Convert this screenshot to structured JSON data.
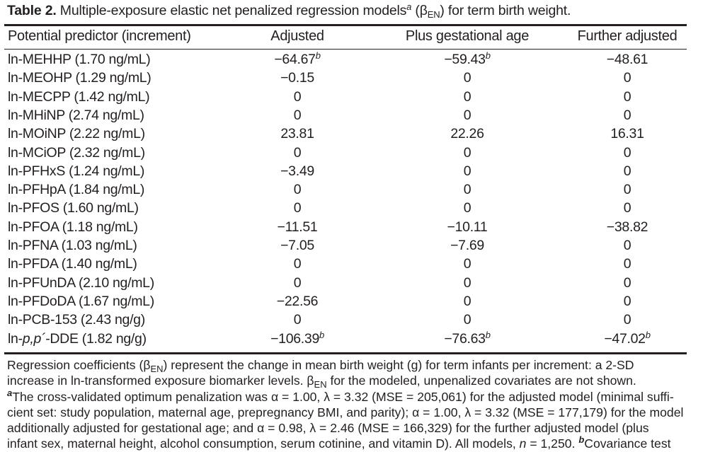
{
  "caption": {
    "label": "Table 2.",
    "text_before": "Multiple-exposure elastic net penalized regression models",
    "mark": "a",
    "text_mid": "(β",
    "sub": "EN",
    "text_after": ") for term birth weight."
  },
  "headers": [
    "Potential predictor (increment)",
    "Adjusted",
    "Plus gestational age",
    "Further adjusted"
  ],
  "rows": [
    {
      "pre": "ln-MEHHP (1.70 ng/mL)",
      "it": "",
      "post": "",
      "v1": "−64.67",
      "s1": "b",
      "v2": "−59.43",
      "s2": "b",
      "v3": "−48.61",
      "s3": ""
    },
    {
      "pre": "ln-MEOHP (1.29 ng/mL)",
      "it": "",
      "post": "",
      "v1": "−0.15",
      "s1": "",
      "v2": "0",
      "s2": "",
      "v3": "0",
      "s3": ""
    },
    {
      "pre": "ln-MECPP (1.42 ng/mL)",
      "it": "",
      "post": "",
      "v1": "0",
      "s1": "",
      "v2": "0",
      "s2": "",
      "v3": "0",
      "s3": ""
    },
    {
      "pre": "ln-MHiNP (2.74 ng/mL)",
      "it": "",
      "post": "",
      "v1": "0",
      "s1": "",
      "v2": "0",
      "s2": "",
      "v3": "0",
      "s3": ""
    },
    {
      "pre": "ln-MOiNP (2.22 ng/mL)",
      "it": "",
      "post": "",
      "v1": "23.81",
      "s1": "",
      "v2": "22.26",
      "s2": "",
      "v3": "16.31",
      "s3": ""
    },
    {
      "pre": "ln-MCiOP (2.32 ng/mL)",
      "it": "",
      "post": "",
      "v1": "0",
      "s1": "",
      "v2": "0",
      "s2": "",
      "v3": "0",
      "s3": ""
    },
    {
      "pre": "ln-PFHxS (1.24 ng/mL)",
      "it": "",
      "post": "",
      "v1": "−3.49",
      "s1": "",
      "v2": "0",
      "s2": "",
      "v3": "0",
      "s3": ""
    },
    {
      "pre": "ln-PFHpA (1.84 ng/mL)",
      "it": "",
      "post": "",
      "v1": "0",
      "s1": "",
      "v2": "0",
      "s2": "",
      "v3": "0",
      "s3": ""
    },
    {
      "pre": "ln-PFOS (1.60 ng/mL)",
      "it": "",
      "post": "",
      "v1": "0",
      "s1": "",
      "v2": "0",
      "s2": "",
      "v3": "0",
      "s3": ""
    },
    {
      "pre": "ln-PFOA (1.18 ng/mL)",
      "it": "",
      "post": "",
      "v1": "−11.51",
      "s1": "",
      "v2": "−10.11",
      "s2": "",
      "v3": "−38.82",
      "s3": ""
    },
    {
      "pre": "ln-PFNA (1.03 ng/mL)",
      "it": "",
      "post": "",
      "v1": "−7.05",
      "s1": "",
      "v2": "−7.69",
      "s2": "",
      "v3": "0",
      "s3": ""
    },
    {
      "pre": "ln-PFDA (1.40 ng/mL)",
      "it": "",
      "post": "",
      "v1": "0",
      "s1": "",
      "v2": "0",
      "s2": "",
      "v3": "0",
      "s3": ""
    },
    {
      "pre": "ln-PFUnDA (2.10 ng/mL)",
      "it": "",
      "post": "",
      "v1": "0",
      "s1": "",
      "v2": "0",
      "s2": "",
      "v3": "0",
      "s3": ""
    },
    {
      "pre": "ln-PFDoDA (1.67 ng/mL)",
      "it": "",
      "post": "",
      "v1": "−22.56",
      "s1": "",
      "v2": "0",
      "s2": "",
      "v3": "0",
      "s3": ""
    },
    {
      "pre": "ln-PCB-153 (2.43 ng/g)",
      "it": "",
      "post": "",
      "v1": "0",
      "s1": "",
      "v2": "0",
      "s2": "",
      "v3": "0",
      "s3": ""
    },
    {
      "pre": "ln-",
      "it": "p,p´",
      "post": "-DDE (1.82 ng/g)",
      "v1": "−106.39",
      "s1": "b",
      "v2": "−76.63",
      "s2": "b",
      "v3": "−47.02",
      "s3": "b"
    }
  ],
  "notes": {
    "l1a": "Regression coefficients (β",
    "l1sub": "EN",
    "l1b": ") represent the change in mean birth weight (g) for term infants per increment: a 2-SD",
    "l2a": "increase in ln-transformed exposure biomarker levels. β",
    "l2sub": "EN",
    "l2b": " for the modeled, unpenalized covariates are not shown.",
    "mark_a": "a",
    "l3": "The cross-validated optimum penalization was α = 1.00, λ = 3.32 (MSE = 205,061) for the adjusted model (minimal suffi-",
    "l4": "cient set: study population, maternal age, prepregnancy BMI, and parity); α = 1.00, λ = 3.32 (MSE = 177,179) for the model",
    "l5": "additionally adjusted for gestational age; and α = 0.98, λ = 2.46 (MSE = 166,329) for the further adjusted model (plus",
    "l6a": "infant sex, maternal height, alcohol consumption, serum cotinine, and vitamin D). All models, ",
    "l6n": "n",
    "l6b": " = 1,250. ",
    "mark_b": "b",
    "l6c": "Covariance test"
  }
}
